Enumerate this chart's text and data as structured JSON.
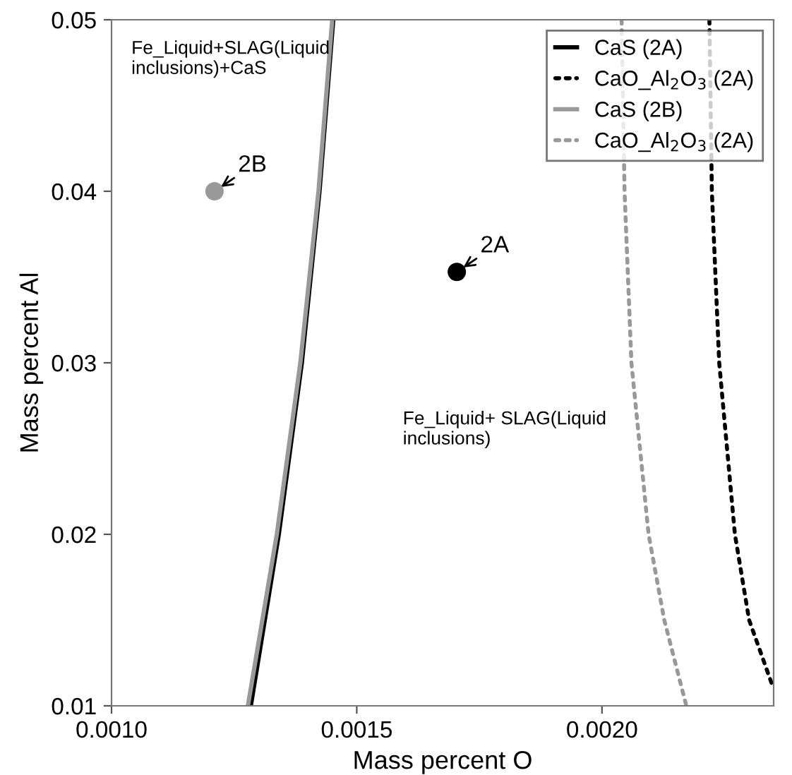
{
  "chart_data": {
    "type": "line",
    "xlabel": "Mass percent O",
    "ylabel": "Mass percent Al",
    "xlim": [
      0.001,
      0.00235
    ],
    "ylim": [
      0.01,
      0.05
    ],
    "xticks": [
      {
        "value": 0.001,
        "label": "0.0010"
      },
      {
        "value": 0.0015,
        "label": "0.0015"
      },
      {
        "value": 0.002,
        "label": "0.0020"
      }
    ],
    "yticks": [
      0.01,
      0.02,
      0.03,
      0.04,
      0.05
    ],
    "grid": false,
    "legend": "top right",
    "marker": "none",
    "series": [
      {
        "name": "CaS (2A)",
        "color": "#000000",
        "line_style": "solid",
        "x": [
          0.001284,
          0.001341,
          0.001388,
          0.001424,
          0.001452
        ],
        "values": [
          0.01,
          0.02,
          0.03,
          0.04,
          0.05
        ]
      },
      {
        "name": "CaO_Al$_{2}$O$_{3}$ (2A)",
        "color": "#000000",
        "line_style": "dotted",
        "x": [
          0.002219,
          0.002224,
          0.002239,
          0.002271,
          0.0023,
          0.002346
        ],
        "values": [
          0.05,
          0.04,
          0.03,
          0.02,
          0.015,
          0.0113
        ]
      },
      {
        "name": "CaS (2B)",
        "color": "#999999",
        "line_style": "solid",
        "x": [
          0.001278,
          0.001337,
          0.001385,
          0.001422,
          0.00145
        ],
        "values": [
          0.01,
          0.02,
          0.03,
          0.04,
          0.05
        ]
      },
      {
        "name": "CaO_Al$_{2}$O$_{3}$ (2A)",
        "color": "#999999",
        "line_style": "dotted",
        "x": [
          0.00204,
          0.002046,
          0.00206,
          0.002095,
          0.002127,
          0.002172
        ],
        "values": [
          0.05,
          0.04,
          0.03,
          0.02,
          0.015,
          0.01
        ]
      },
      {
        "type": "scatter",
        "marker": "circle",
        "color": "#999999",
        "x": [
          0.00121
        ],
        "values": [
          0.04
        ]
      },
      {
        "type": "scatter",
        "marker": "circle",
        "color": "#000000",
        "x": [
          0.001704
        ],
        "values": [
          0.0353
        ]
      }
    ],
    "annotations": [
      {
        "text": "2B",
        "x": 0.00121,
        "y": 0.04
      },
      {
        "text": "2A",
        "x": 0.001704,
        "y": 0.0353
      },
      "Fe_Liquid+SLAG(Liquid\ninclusions)+CaS",
      "Fe_Liquid+ SLAG(Liquid\ninclusions)"
    ]
  }
}
